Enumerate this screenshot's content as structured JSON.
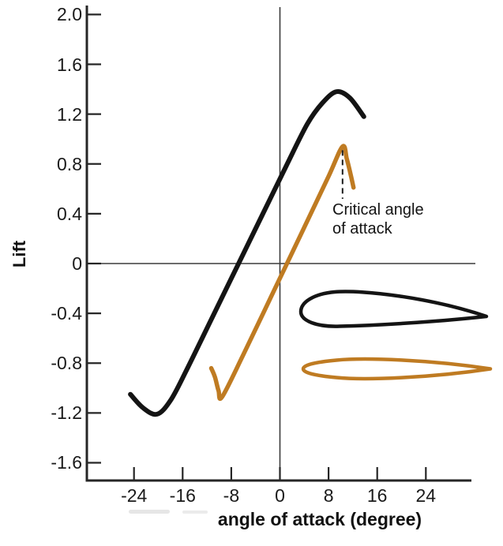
{
  "page": {
    "background": "#ffffff"
  },
  "chart_data": {
    "type": "line",
    "title": "",
    "xlabel": "angle of attack (degree)",
    "ylabel": "Lift",
    "xlim": [
      -31.5,
      31.5
    ],
    "ylim": [
      -1.74,
      2.06
    ],
    "grid": false,
    "legend_position": "none",
    "x_ticks": [
      -24,
      -16,
      -8,
      0,
      8,
      16,
      24
    ],
    "y_tick_labels": [
      "2.0",
      "1.6",
      "1.2",
      "0.8",
      "0.4",
      "0",
      "-0.4",
      "-0.8",
      "-1.2",
      "-1.6"
    ],
    "y_tick_values": [
      2.0,
      1.6,
      1.2,
      0.8,
      0.4,
      0,
      -0.4,
      -0.8,
      -1.2,
      -1.6
    ],
    "series": [
      {
        "name": "cambered-airfoil-lift-curve",
        "color": "#141414",
        "x": [
          -24.6,
          -22.5,
          -20.2,
          -18,
          -15.5,
          -11,
          -7,
          -3,
          1,
          4.5,
          7,
          9.3,
          11.5,
          13.8
        ],
        "y": [
          -1.05,
          -1.16,
          -1.21,
          -1.1,
          -0.87,
          -0.42,
          -0.02,
          0.38,
          0.78,
          1.12,
          1.29,
          1.38,
          1.33,
          1.18
        ],
        "stall_peak": {
          "x": 9.3,
          "y": 1.38
        },
        "zero_lift_angle": -6.9
      },
      {
        "name": "symmetric-airfoil-lift-curve",
        "color": "#bf7b22",
        "x": [
          -11.3,
          -10.7,
          -10.1,
          -9.5,
          -6,
          -1,
          4,
          8,
          10.3,
          11.0,
          11.7,
          12.1
        ],
        "y": [
          -0.84,
          -0.91,
          -1.02,
          -1.07,
          -0.73,
          -0.22,
          0.29,
          0.7,
          0.94,
          0.84,
          0.7,
          0.61
        ],
        "stall_peak": {
          "x": 10.3,
          "y": 0.94
        },
        "zero_lift_angle": 1.0
      }
    ],
    "annotation": {
      "line1": "Critical angle",
      "line2": "of attack",
      "points_to": {
        "x": 10.3,
        "y": 0.94
      },
      "dashed_line": {
        "x": 10.3,
        "y_top": 0.91,
        "y_bottom": 0.52
      }
    },
    "airfoil_profiles": [
      {
        "name": "cambered-airfoil-profile",
        "color": "#141414",
        "center_lift": -0.4
      },
      {
        "name": "symmetric-airfoil-profile",
        "color": "#bf7b22",
        "center_lift": -0.85
      }
    ]
  }
}
